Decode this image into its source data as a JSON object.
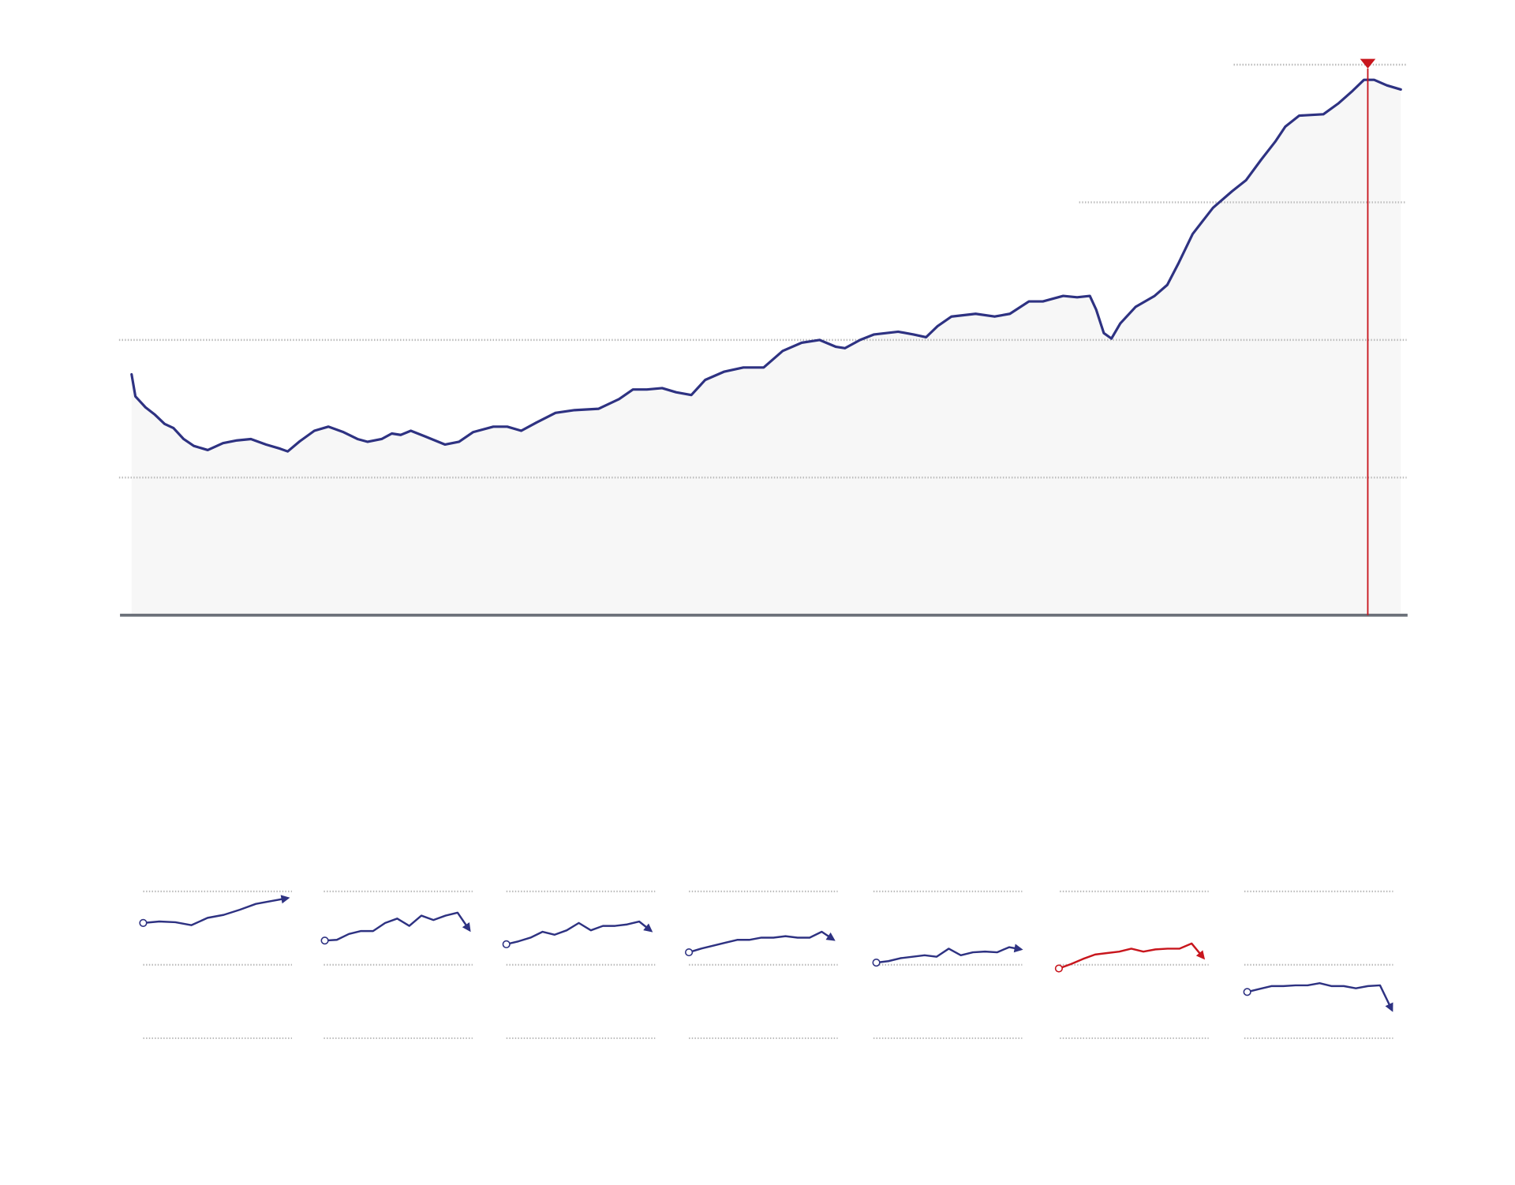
{
  "chart_data": [
    {
      "type": "area",
      "title": "",
      "xlabel": "",
      "ylabel": "",
      "xlim": [
        0,
        100
      ],
      "ylim": [
        0,
        4
      ],
      "grid": true,
      "gridlines": [
        1,
        2,
        3,
        4
      ],
      "marker_x": 97.4,
      "colors": {
        "line": "#2e3282",
        "fill": "#f7f7f7",
        "marker": "#c8161d",
        "axis": "#6b7079",
        "grid": "#bbbbbb"
      },
      "x": [
        0,
        0.3,
        1.1,
        1.8,
        2.6,
        3.3,
        4.1,
        4.9,
        6.0,
        7.2,
        8.3,
        9.4,
        10.6,
        11.7,
        12.3,
        13.2,
        14.4,
        15.5,
        16.7,
        17.8,
        18.6,
        19.7,
        20.5,
        21.2,
        22.0,
        23.1,
        24.7,
        25.8,
        26.9,
        28.5,
        29.6,
        30.7,
        31.9,
        33.4,
        34.9,
        36.8,
        38.4,
        39.5,
        40.6,
        41.8,
        42.9,
        44.1,
        45.2,
        46.7,
        48.2,
        49.8,
        51.3,
        52.8,
        54.2,
        55.5,
        56.2,
        57.4,
        58.5,
        60.4,
        61.6,
        62.6,
        63.5,
        64.6,
        66.5,
        68.0,
        69.2,
        70.7,
        71.8,
        73.4,
        74.5,
        75.5,
        76.0,
        76.6,
        77.2,
        77.9,
        79.1,
        80.6,
        81.6,
        82.5,
        83.6,
        85.2,
        86.7,
        87.8,
        89.0,
        90.1,
        90.9,
        92.0,
        93.9,
        95.1,
        96.2,
        97.1,
        97.9,
        98.9,
        100
      ],
      "values": [
        1.75,
        1.59,
        1.51,
        1.46,
        1.39,
        1.36,
        1.28,
        1.23,
        1.2,
        1.25,
        1.27,
        1.28,
        1.24,
        1.21,
        1.19,
        1.26,
        1.34,
        1.37,
        1.33,
        1.28,
        1.26,
        1.28,
        1.32,
        1.31,
        1.34,
        1.3,
        1.24,
        1.26,
        1.33,
        1.37,
        1.37,
        1.34,
        1.4,
        1.47,
        1.49,
        1.5,
        1.57,
        1.64,
        1.64,
        1.65,
        1.62,
        1.6,
        1.71,
        1.77,
        1.8,
        1.8,
        1.92,
        1.98,
        2.0,
        1.95,
        1.94,
        2.0,
        2.04,
        2.06,
        2.04,
        2.02,
        2.1,
        2.17,
        2.19,
        2.17,
        2.19,
        2.28,
        2.28,
        2.32,
        2.31,
        2.32,
        2.22,
        2.05,
        2.01,
        2.12,
        2.24,
        2.32,
        2.4,
        2.56,
        2.77,
        2.96,
        3.08,
        3.16,
        3.31,
        3.44,
        3.55,
        3.63,
        3.64,
        3.72,
        3.81,
        3.89,
        3.89,
        3.85,
        3.82
      ]
    },
    {
      "type": "line",
      "subtype": "small-multiples",
      "ylim": [
        0,
        2
      ],
      "gridlines": [
        0,
        1,
        2
      ],
      "series": [
        {
          "color": "#2e3282",
          "values": [
            1.57,
            1.59,
            1.58,
            1.54,
            1.64,
            1.68,
            1.75,
            1.83,
            1.87,
            1.91
          ]
        },
        {
          "color": "#2e3282",
          "values": [
            1.33,
            1.34,
            1.42,
            1.46,
            1.46,
            1.57,
            1.63,
            1.53,
            1.67,
            1.61,
            1.67,
            1.71,
            1.47
          ]
        },
        {
          "color": "#2e3282",
          "values": [
            1.28,
            1.32,
            1.37,
            1.45,
            1.41,
            1.47,
            1.57,
            1.47,
            1.53,
            1.53,
            1.55,
            1.59,
            1.46
          ]
        },
        {
          "color": "#2e3282",
          "values": [
            1.17,
            1.22,
            1.26,
            1.3,
            1.34,
            1.34,
            1.37,
            1.37,
            1.39,
            1.37,
            1.37,
            1.45,
            1.34
          ]
        },
        {
          "color": "#2e3282",
          "values": [
            1.03,
            1.05,
            1.09,
            1.11,
            1.13,
            1.11,
            1.22,
            1.13,
            1.17,
            1.18,
            1.17,
            1.24,
            1.21
          ]
        },
        {
          "color": "#c8161d",
          "values": [
            0.95,
            1.01,
            1.08,
            1.14,
            1.16,
            1.18,
            1.22,
            1.18,
            1.21,
            1.22,
            1.22,
            1.29,
            1.09
          ]
        },
        {
          "color": "#2e3282",
          "values": [
            0.63,
            0.67,
            0.71,
            0.71,
            0.72,
            0.72,
            0.75,
            0.71,
            0.71,
            0.68,
            0.71,
            0.72,
            0.38
          ]
        }
      ]
    }
  ]
}
